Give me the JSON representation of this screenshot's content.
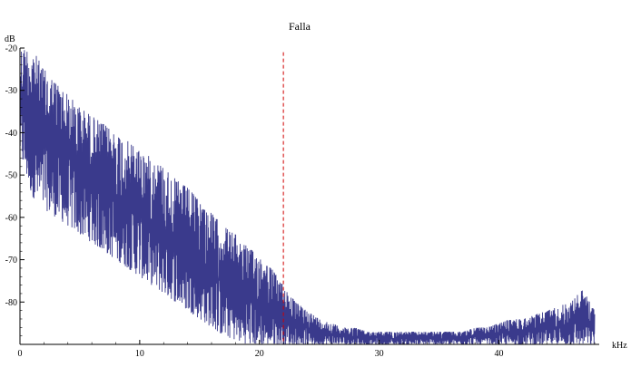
{
  "chart_data": {
    "type": "line",
    "title": "Falla",
    "xlabel": "kHz",
    "ylabel": "dB",
    "xlim": [
      0,
      48
    ],
    "ylim": [
      -90,
      -20
    ],
    "x_ticks": [
      0,
      10,
      20,
      30,
      40
    ],
    "y_ticks": [
      -20,
      -30,
      -40,
      -50,
      -60,
      -70,
      -80
    ],
    "x_tick_labels": [
      "0",
      "10",
      "20",
      "30",
      "40"
    ],
    "y_tick_labels": [
      "-20",
      "-30",
      "-40",
      "-50",
      "-60",
      "-70",
      "-80"
    ],
    "grid": false,
    "series": [
      {
        "color": "#3a3a8c",
        "envelope_x": [
          0,
          0.5,
          1,
          2,
          3,
          4,
          5,
          6,
          7,
          8,
          9,
          10,
          11,
          12,
          13,
          14,
          15,
          16,
          17,
          18,
          19,
          20,
          21,
          22,
          23,
          24,
          25,
          26,
          27,
          28,
          29,
          30,
          31,
          32,
          33,
          34,
          35,
          36,
          37,
          38,
          39,
          40,
          41,
          42,
          43,
          44,
          45,
          46,
          47,
          48
        ],
        "envelope_max": [
          -20,
          -20,
          -20,
          -25,
          -28,
          -31,
          -34,
          -36,
          -38,
          -40,
          -42,
          -44,
          -46,
          -48,
          -51,
          -53,
          -56,
          -59,
          -62,
          -64,
          -67,
          -69,
          -72,
          -76,
          -80,
          -82,
          -84,
          -85,
          -86,
          -86,
          -87,
          -87,
          -87,
          -87,
          -87,
          -87,
          -87,
          -87,
          -87,
          -86,
          -86,
          -85,
          -84,
          -84,
          -83,
          -82,
          -81,
          -80,
          -77,
          -82
        ],
        "envelope_min": [
          -45,
          -50,
          -55,
          -58,
          -60,
          -62,
          -64,
          -66,
          -68,
          -70,
          -72,
          -74,
          -76,
          -78,
          -80,
          -82,
          -84,
          -86,
          -88,
          -89,
          -90,
          -90,
          -90,
          -90,
          -90,
          -90,
          -90,
          -90,
          -90,
          -90,
          -90,
          -90,
          -90,
          -90,
          -90,
          -90,
          -90,
          -90,
          -90,
          -90,
          -90,
          -90,
          -90,
          -90,
          -90,
          -90,
          -90,
          -90,
          -90,
          -90
        ]
      }
    ],
    "annotations": [
      {
        "type": "vline",
        "x": 22,
        "color": "#d00000",
        "style": "dashed",
        "y_top": -21
      }
    ]
  }
}
